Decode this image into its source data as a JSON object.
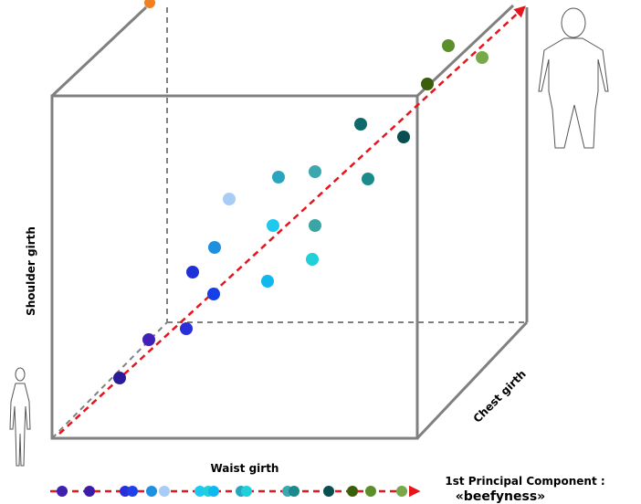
{
  "axes": {
    "y_label": "Shoulder girth",
    "x_label": "Waist girth",
    "z_label": "Chest girth"
  },
  "legend": {
    "title": "1st Principal Component :",
    "name": "«beefyness»"
  }
}
